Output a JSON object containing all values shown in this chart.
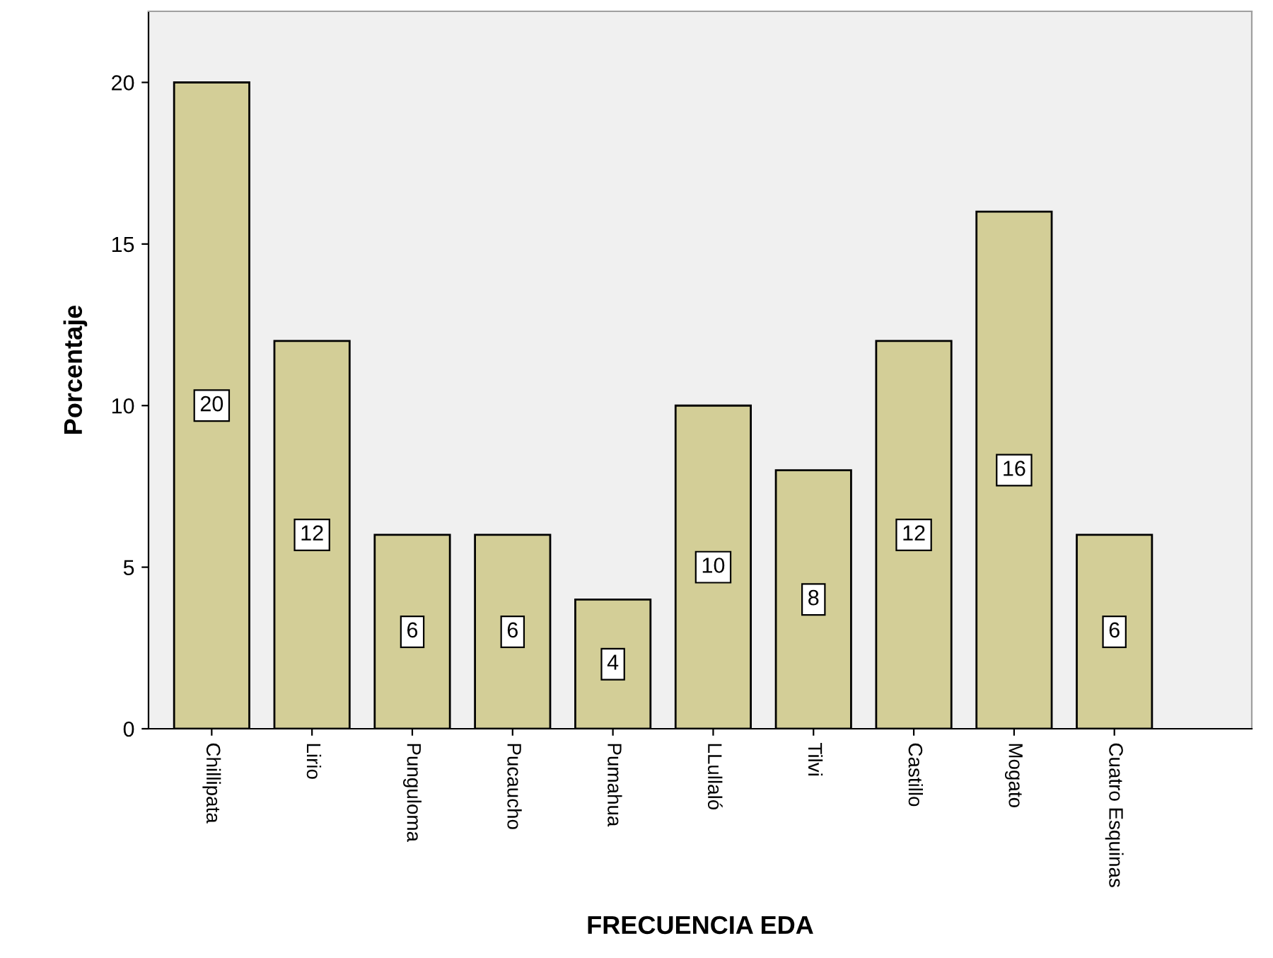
{
  "chart_data": {
    "type": "bar",
    "xlabel": "FRECUENCIA EDA",
    "ylabel": "Porcentaje",
    "categories": [
      "Chillipata",
      "Lirio",
      "Punguloma",
      "Pucaucho",
      "Pumahua",
      "LLullaló",
      "Tilvi",
      "Castillo",
      "Mogato",
      "Cuatro Esquinas"
    ],
    "values": [
      20,
      12,
      6,
      6,
      4,
      10,
      8,
      12,
      16,
      6
    ],
    "color": "#d3ce97",
    "ylim": [
      0,
      22.2
    ],
    "yticks": [
      0,
      5,
      10,
      15,
      20
    ],
    "grid": false,
    "data_labels": true
  }
}
